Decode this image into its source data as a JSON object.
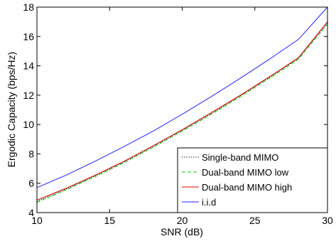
{
  "chart_data": {
    "type": "line",
    "title": "",
    "xlabel": "SNR (dB)",
    "ylabel": "Ergodic Capacity (bps/Hz)",
    "xlim": [
      10,
      30
    ],
    "ylim": [
      4,
      18
    ],
    "xticks": [
      10,
      15,
      20,
      25,
      30
    ],
    "yticks": [
      4,
      6,
      8,
      10,
      12,
      14,
      16,
      18
    ],
    "grid": false,
    "legend_position": "bottom-right",
    "x": [
      10,
      12,
      14,
      16,
      18,
      20,
      22,
      24,
      26,
      28,
      30
    ],
    "series": [
      {
        "name": "Single-band MIMO",
        "color": "#000000",
        "style": "dotted",
        "values": [
          4.75,
          5.6,
          6.5,
          7.45,
          8.5,
          9.6,
          10.75,
          11.95,
          13.2,
          14.5,
          16.9
        ]
      },
      {
        "name": "Dual-band MIMO low",
        "color": "#00cc00",
        "style": "dashed",
        "values": [
          4.7,
          5.55,
          6.45,
          7.4,
          8.45,
          9.55,
          10.7,
          11.9,
          13.15,
          14.45,
          16.85
        ]
      },
      {
        "name": "Dual-band MIMO high",
        "color": "#e00000",
        "style": "solid",
        "values": [
          4.85,
          5.65,
          6.55,
          7.5,
          8.55,
          9.65,
          10.8,
          12.0,
          13.25,
          14.55,
          17.0
        ]
      },
      {
        "name": "i.i.d",
        "color": "#2020ff",
        "style": "solid",
        "values": [
          5.7,
          6.55,
          7.5,
          8.5,
          9.55,
          10.7,
          11.9,
          13.15,
          14.45,
          15.8,
          18.0
        ]
      }
    ]
  }
}
